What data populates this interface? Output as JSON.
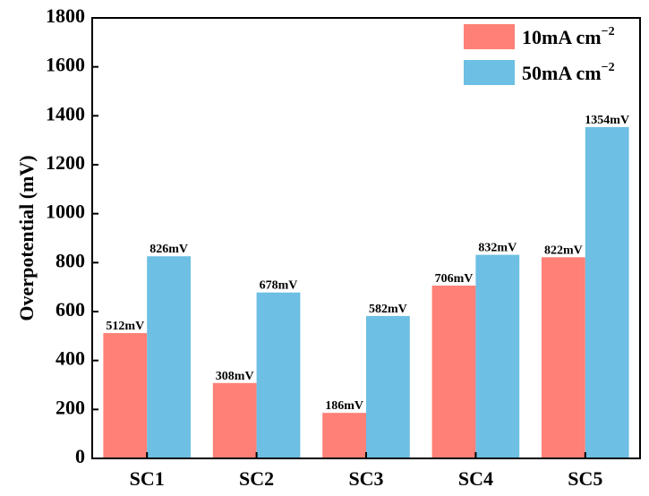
{
  "chart_data": {
    "type": "bar",
    "title": "",
    "xlabel": "",
    "ylabel": "Overpotential (mV)",
    "ylim": [
      0,
      1800
    ],
    "yticks": [
      0,
      200,
      400,
      600,
      800,
      1000,
      1200,
      1400,
      1600,
      1800
    ],
    "categories": [
      "SC1",
      "SC2",
      "SC3",
      "SC4",
      "SC5"
    ],
    "series": [
      {
        "name": "10mA cm",
        "unit_exponent": "−2",
        "color": "#ff8076",
        "values": [
          512,
          308,
          186,
          706,
          822
        ],
        "labels": [
          "512mV",
          "308mV",
          "186mV",
          "706mV",
          "822mV"
        ]
      },
      {
        "name": "50mA cm",
        "unit_exponent": "−2",
        "color": "#6dbfe3",
        "values": [
          826,
          678,
          582,
          832,
          1354
        ],
        "labels": [
          "826mV",
          "678mV",
          "582mV",
          "832mV",
          "1354mV"
        ]
      }
    ],
    "legend_position": "top-right",
    "grid": false
  }
}
